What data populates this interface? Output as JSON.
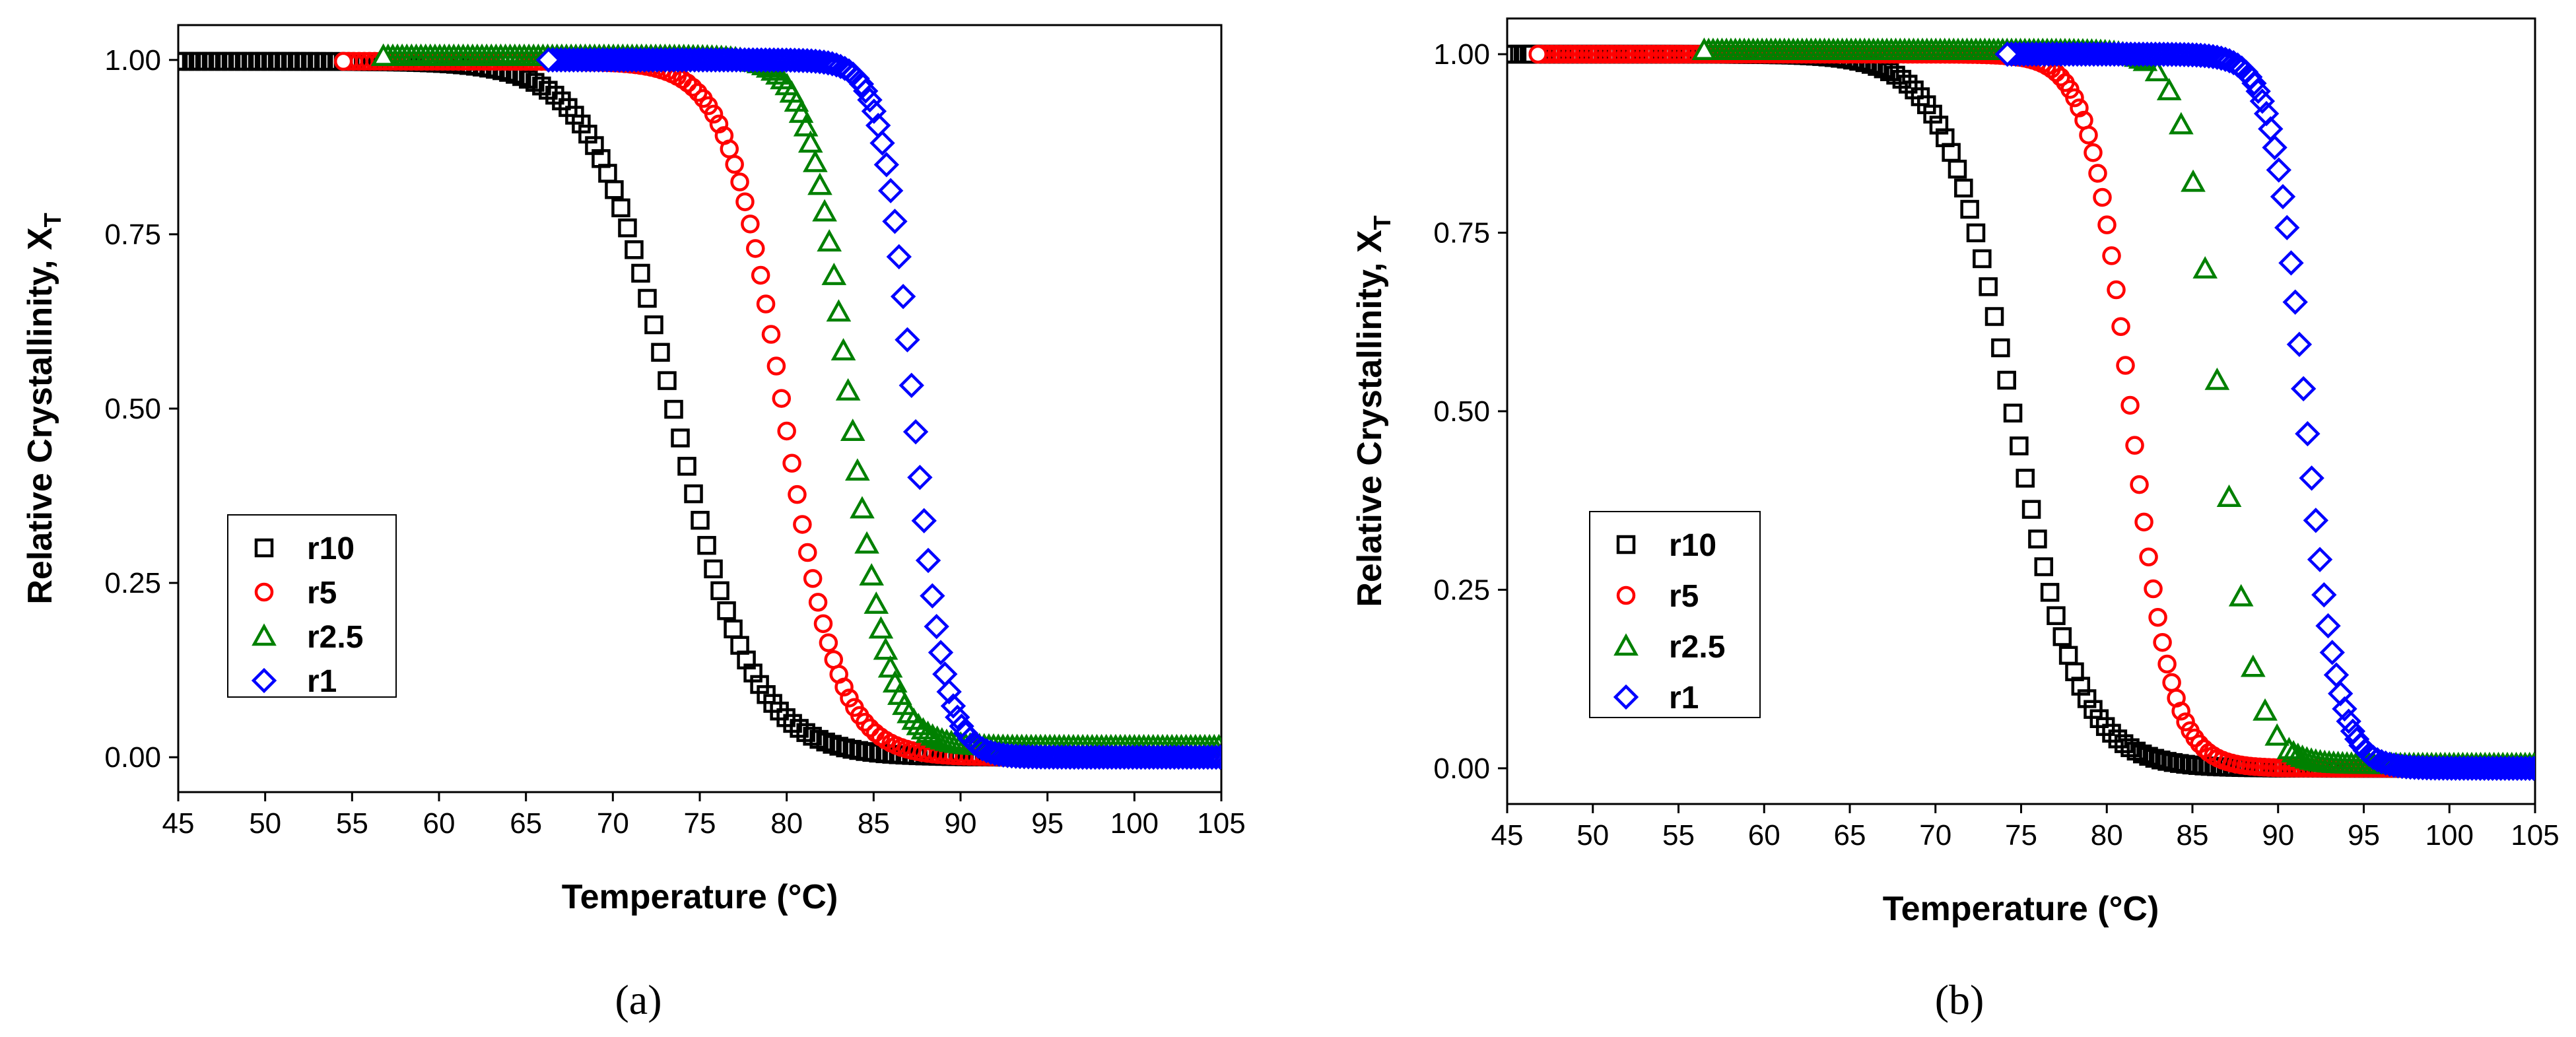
{
  "figure": {
    "panel_labels": [
      "(a)",
      "(b)"
    ]
  },
  "chart_data": [
    {
      "type": "scatter",
      "panel": "(a)",
      "xlabel": "Temperature (°C)",
      "ylabel": "Relative Crystallinity, X",
      "ylabel_sub": "T",
      "xlim": [
        45,
        105
      ],
      "ylim": [
        -0.05,
        1.05
      ],
      "xticks": [
        45,
        50,
        55,
        60,
        65,
        70,
        75,
        80,
        85,
        90,
        95,
        100,
        105
      ],
      "yticks": [
        0.0,
        0.25,
        0.5,
        0.75,
        1.0
      ],
      "ytick_labels": [
        "0.00",
        "0.25",
        "0.50",
        "0.75",
        "1.00"
      ],
      "grid": false,
      "legend_position": "lower-left",
      "series": [
        {
          "name": "r10",
          "marker": "square",
          "color": "#000000",
          "x_start": 45,
          "x_end": 105,
          "step": 0.38,
          "midpoint": 73.5,
          "width": 2.3,
          "top": 0.998,
          "bottom": 0.0,
          "label_x": 54.5
        },
        {
          "name": "r5",
          "marker": "circle",
          "color": "#ff0000",
          "x_start": 54.5,
          "x_end": 105,
          "step": 0.3,
          "midpoint": 79.8,
          "width": 1.6,
          "top": 0.998,
          "bottom": 0.0,
          "label_x": 54.5
        },
        {
          "name": "r2.5",
          "marker": "triangle",
          "color": "#008000",
          "x_start": 56.8,
          "x_end": 105,
          "step": 0.27,
          "midpoint": 83.6,
          "width": 1.15,
          "top": 1.005,
          "bottom": 0.015,
          "label_x": 56.8
        },
        {
          "name": "r1",
          "marker": "diamond",
          "color": "#0000ff",
          "x_start": 66.3,
          "x_end": 105,
          "step": 0.24,
          "midpoint": 87.3,
          "width": 0.9,
          "top": 1.0,
          "bottom": 0.0,
          "label_x": 66.3
        }
      ]
    },
    {
      "type": "scatter",
      "panel": "(b)",
      "xlabel": "Temperature (°C)",
      "ylabel": "Relative Crystallinity, X",
      "ylabel_sub": "T",
      "xlim": [
        45,
        105
      ],
      "ylim": [
        -0.05,
        1.05
      ],
      "xticks": [
        45,
        50,
        55,
        60,
        65,
        70,
        75,
        80,
        85,
        90,
        95,
        100,
        105
      ],
      "yticks": [
        0.0,
        0.25,
        0.5,
        0.75,
        1.0
      ],
      "ytick_labels": [
        "0.00",
        "0.25",
        "0.50",
        "0.75",
        "1.00"
      ],
      "grid": false,
      "legend_position": "lower-left",
      "series": [
        {
          "name": "r10",
          "marker": "square",
          "color": "#000000",
          "x_start": 45,
          "x_end": 105,
          "step": 0.36,
          "midpoint": 74.5,
          "width": 1.95,
          "top": 1.0,
          "bottom": 0.0,
          "label_x": 46.5
        },
        {
          "name": "r5",
          "marker": "circle",
          "color": "#ff0000",
          "x_start": 46.8,
          "x_end": 105,
          "step": 0.27,
          "midpoint": 81.4,
          "width": 1.2,
          "top": 1.0,
          "bottom": 0.0,
          "label_x": 46.8
        },
        {
          "name": "r2.5",
          "marker": "triangle",
          "color": "#008000",
          "x_start": 56.5,
          "x_end": 105,
          "step": 0.26,
          "midpoint": 86.6,
          "width": 1.05,
          "top": 1.005,
          "bottom": 0.005,
          "label_x": 56.5,
          "sparse_between": [
            82,
            90
          ],
          "sparse_step": 0.7
        },
        {
          "name": "r1",
          "marker": "diamond",
          "color": "#0000ff",
          "x_start": 74.2,
          "x_end": 105,
          "step": 0.24,
          "midpoint": 91.6,
          "width": 0.95,
          "top": 1.0,
          "bottom": 0.0,
          "label_x": 74.2
        }
      ]
    }
  ]
}
